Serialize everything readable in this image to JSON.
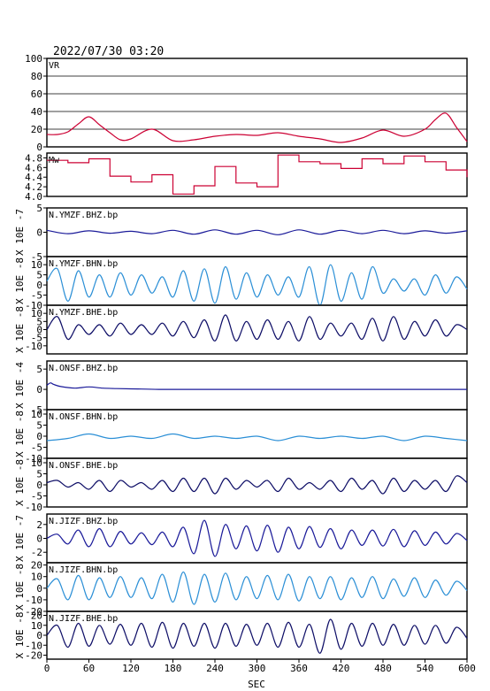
{
  "title": "2022/07/30 03:20",
  "chart_data": {
    "type": "line",
    "xlabel": "SEC",
    "xlim": [
      0,
      600
    ],
    "xticks": [
      "0",
      "60",
      "120",
      "180",
      "240",
      "300",
      "360",
      "420",
      "480",
      "540",
      "600"
    ],
    "panels": [
      {
        "label": "VR",
        "ylabel": "",
        "ylim": [
          0,
          100
        ],
        "yticks": [
          "100",
          "80",
          "60",
          "40",
          "20",
          "0"
        ],
        "grid": true,
        "color": "#cc0033",
        "style": "smooth",
        "x": [
          0,
          15,
          30,
          45,
          60,
          75,
          90,
          105,
          120,
          150,
          180,
          210,
          240,
          270,
          300,
          330,
          360,
          390,
          420,
          450,
          480,
          510,
          540,
          555,
          570,
          585,
          600
        ],
        "y": [
          14,
          14,
          17,
          26,
          34,
          25,
          16,
          8,
          9,
          20,
          7,
          8,
          12,
          14,
          13,
          16,
          12,
          9,
          5,
          10,
          19,
          12,
          20,
          31,
          38,
          22,
          6
        ]
      },
      {
        "label": "Mw",
        "ylabel": "",
        "ylim": [
          4.0,
          4.9
        ],
        "yticks": [
          "4.8",
          "4.6",
          "4.4",
          "4.2",
          "4.0"
        ],
        "grid": false,
        "color": "#cc0033",
        "style": "step",
        "x": [
          0,
          30,
          60,
          90,
          120,
          150,
          180,
          210,
          240,
          270,
          300,
          330,
          360,
          390,
          420,
          450,
          480,
          510,
          540,
          570,
          600
        ],
        "y": [
          4.75,
          4.7,
          4.78,
          4.42,
          4.3,
          4.45,
          4.05,
          4.22,
          4.62,
          4.28,
          4.2,
          4.86,
          4.72,
          4.68,
          4.58,
          4.78,
          4.68,
          4.84,
          4.72,
          4.55,
          4.4
        ]
      },
      {
        "label": "N.YMZF.BHZ.bp",
        "ylabel": "X 10E -7",
        "ylim": [
          -5,
          5
        ],
        "yticks": [
          "5",
          "0",
          "-5"
        ],
        "grid": false,
        "color": "#1a1a99",
        "style": "smooth",
        "x": [
          0,
          30,
          60,
          90,
          120,
          150,
          180,
          210,
          240,
          270,
          300,
          330,
          360,
          390,
          420,
          450,
          480,
          510,
          540,
          570,
          600
        ],
        "y": [
          0.4,
          -0.3,
          0.3,
          -0.2,
          0.2,
          -0.3,
          0.4,
          -0.4,
          0.5,
          -0.4,
          0.4,
          -0.5,
          0.5,
          -0.4,
          0.4,
          -0.3,
          0.4,
          -0.3,
          0.3,
          -0.2,
          0.3
        ]
      },
      {
        "label": "N.YMZF.BHN.bp",
        "ylabel": "X 10E -8",
        "ylim": [
          -10,
          14
        ],
        "yticks": [
          "10",
          "5",
          "0",
          "-5",
          "-10"
        ],
        "grid": false,
        "color": "#2b8fd6",
        "style": "smooth",
        "x": [
          0,
          15,
          30,
          45,
          60,
          75,
          90,
          105,
          120,
          135,
          150,
          165,
          180,
          195,
          210,
          225,
          240,
          255,
          270,
          285,
          300,
          315,
          330,
          345,
          360,
          375,
          390,
          405,
          420,
          435,
          450,
          465,
          480,
          495,
          510,
          525,
          540,
          555,
          570,
          585,
          600
        ],
        "y": [
          2,
          8,
          -8,
          7,
          -6,
          5,
          -6,
          6,
          -5,
          5,
          -4,
          4,
          -6,
          7,
          -8,
          8,
          -9,
          9,
          -7,
          6,
          -6,
          5,
          -5,
          4,
          -6,
          9,
          -10,
          10,
          -8,
          6,
          -7,
          9,
          -4,
          3,
          -3,
          3,
          -5,
          5,
          -4,
          4,
          -2
        ]
      },
      {
        "label": "N.YMZF.BHE.bp",
        "ylabel": "X 10E -8",
        "ylim": [
          -15,
          15
        ],
        "yticks": [
          "10",
          "5",
          "0",
          "-5",
          "-10"
        ],
        "grid": false,
        "color": "#0d0d66",
        "style": "smooth",
        "x": [
          0,
          15,
          30,
          45,
          60,
          75,
          90,
          105,
          120,
          135,
          150,
          165,
          180,
          195,
          210,
          225,
          240,
          255,
          270,
          285,
          300,
          315,
          330,
          345,
          360,
          375,
          390,
          405,
          420,
          435,
          450,
          465,
          480,
          495,
          510,
          525,
          540,
          555,
          570,
          585,
          600
        ],
        "y": [
          0,
          8,
          -6,
          3,
          -3,
          3,
          -4,
          4,
          -3,
          3,
          -3,
          4,
          -4,
          5,
          -5,
          6,
          -7,
          9,
          -7,
          5,
          -6,
          6,
          -6,
          5,
          -7,
          8,
          -6,
          4,
          -4,
          4,
          -6,
          7,
          -7,
          8,
          -6,
          5,
          -4,
          6,
          -4,
          3,
          0
        ]
      },
      {
        "label": "N.ONSF.BHZ.bp",
        "ylabel": "X 10E -4",
        "ylim": [
          -5,
          7
        ],
        "yticks": [
          "5",
          "0",
          "-5"
        ],
        "grid": false,
        "color": "#1a1a99",
        "style": "smooth",
        "x": [
          0,
          5,
          10,
          20,
          40,
          60,
          80,
          100,
          130,
          160,
          200,
          300,
          400,
          500,
          600
        ],
        "y": [
          1,
          1.6,
          1.2,
          0.7,
          0.3,
          0.6,
          0.3,
          0.2,
          0.1,
          0,
          0,
          0,
          0,
          0,
          0
        ]
      },
      {
        "label": "N.ONSF.BHN.bp",
        "ylabel": "X 10E -8",
        "ylim": [
          -10,
          12
        ],
        "yticks": [
          "10",
          "5",
          "0",
          "-5",
          "-10"
        ],
        "grid": false,
        "color": "#2b8fd6",
        "style": "smooth",
        "x": [
          0,
          30,
          60,
          90,
          120,
          150,
          180,
          210,
          240,
          270,
          300,
          330,
          360,
          390,
          420,
          450,
          480,
          510,
          540,
          570,
          600
        ],
        "y": [
          -2,
          -1,
          1,
          -1,
          0,
          -1,
          1,
          -1,
          0,
          -1,
          0,
          -2,
          0,
          -1,
          0,
          -1,
          0,
          -2,
          0,
          -1,
          -2
        ]
      },
      {
        "label": "N.ONSF.BHE.bp",
        "ylabel": "X 10E -8",
        "ylim": [
          -10,
          12
        ],
        "yticks": [
          "10",
          "5",
          "0",
          "-5",
          "-10"
        ],
        "grid": false,
        "color": "#0d0d66",
        "style": "smooth",
        "x": [
          0,
          15,
          30,
          45,
          60,
          75,
          90,
          105,
          120,
          135,
          150,
          165,
          180,
          195,
          210,
          225,
          240,
          255,
          270,
          285,
          300,
          315,
          330,
          345,
          360,
          375,
          390,
          405,
          420,
          435,
          450,
          465,
          480,
          495,
          510,
          525,
          540,
          555,
          570,
          585,
          600
        ],
        "y": [
          1,
          2,
          -1,
          1,
          -2,
          2,
          -3,
          2,
          -1,
          1,
          -2,
          2,
          -3,
          3,
          -3,
          3,
          -4,
          3,
          -2,
          2,
          -1,
          2,
          -3,
          3,
          -2,
          1,
          -2,
          2,
          -3,
          3,
          -2,
          2,
          -4,
          3,
          -3,
          2,
          -2,
          2,
          -3,
          4,
          1
        ]
      },
      {
        "label": "N.JIZF.BHZ.bp",
        "ylabel": "X 10E -7",
        "ylim": [
          -3.5,
          3.5
        ],
        "yticks": [
          "2",
          "0",
          "-2"
        ],
        "grid": false,
        "color": "#1a1a99",
        "style": "smooth",
        "x": [
          0,
          15,
          30,
          45,
          60,
          75,
          90,
          105,
          120,
          135,
          150,
          165,
          180,
          195,
          210,
          225,
          240,
          255,
          270,
          285,
          300,
          315,
          330,
          345,
          360,
          375,
          390,
          405,
          420,
          435,
          450,
          465,
          480,
          495,
          510,
          525,
          540,
          555,
          570,
          585,
          600
        ],
        "y": [
          0,
          0.6,
          -0.8,
          1.2,
          -1.2,
          1.4,
          -1.2,
          1,
          -0.8,
          0.8,
          -0.9,
          0.9,
          -1.2,
          1.6,
          -2.2,
          2.6,
          -2.6,
          2,
          -1.5,
          1.8,
          -1.8,
          1.9,
          -2,
          1.6,
          -1.5,
          1.7,
          -1.3,
          1.4,
          -1.5,
          1.2,
          -1,
          1.2,
          -1.1,
          1.3,
          -1.2,
          1.1,
          -1,
          0.9,
          -0.8,
          0.7,
          -0.3
        ]
      },
      {
        "label": "N.JIZF.BHN.bp",
        "ylabel": "X 10E -8",
        "ylim": [
          -20,
          22
        ],
        "yticks": [
          "20",
          "10",
          "0",
          "-10",
          "-20"
        ],
        "grid": false,
        "color": "#2b8fd6",
        "style": "smooth",
        "x": [
          0,
          15,
          30,
          45,
          60,
          75,
          90,
          105,
          120,
          135,
          150,
          165,
          180,
          195,
          210,
          225,
          240,
          255,
          270,
          285,
          300,
          315,
          330,
          345,
          360,
          375,
          390,
          405,
          420,
          435,
          450,
          465,
          480,
          495,
          510,
          525,
          540,
          555,
          570,
          585,
          600
        ],
        "y": [
          0,
          8,
          -10,
          11,
          -10,
          9,
          -8,
          10,
          -8,
          9,
          -9,
          12,
          -12,
          14,
          -14,
          12,
          -12,
          13,
          -10,
          10,
          -9,
          11,
          -10,
          12,
          -11,
          10,
          -9,
          10,
          -10,
          9,
          -8,
          10,
          -9,
          8,
          -7,
          9,
          -8,
          7,
          -6,
          6,
          -2
        ]
      },
      {
        "label": "N.JIZF.BHE.bp",
        "ylabel": "X 10E -8",
        "ylim": [
          -24,
          24
        ],
        "yticks": [
          "20",
          "10",
          "0",
          "-10",
          "-20"
        ],
        "grid": false,
        "color": "#0d0d66",
        "style": "smooth",
        "x": [
          0,
          15,
          30,
          45,
          60,
          75,
          90,
          105,
          120,
          135,
          150,
          165,
          180,
          195,
          210,
          225,
          240,
          255,
          270,
          285,
          300,
          315,
          330,
          345,
          360,
          375,
          390,
          405,
          420,
          435,
          450,
          465,
          480,
          495,
          510,
          525,
          540,
          555,
          570,
          585,
          600
        ],
        "y": [
          0,
          10,
          -12,
          12,
          -11,
          10,
          -9,
          11,
          -10,
          12,
          -12,
          13,
          -13,
          12,
          -11,
          12,
          -13,
          12,
          -11,
          11,
          -10,
          12,
          -12,
          13,
          -12,
          11,
          -18,
          16,
          -14,
          12,
          -11,
          12,
          -10,
          11,
          -10,
          10,
          -9,
          10,
          -8,
          8,
          -3
        ]
      }
    ]
  }
}
